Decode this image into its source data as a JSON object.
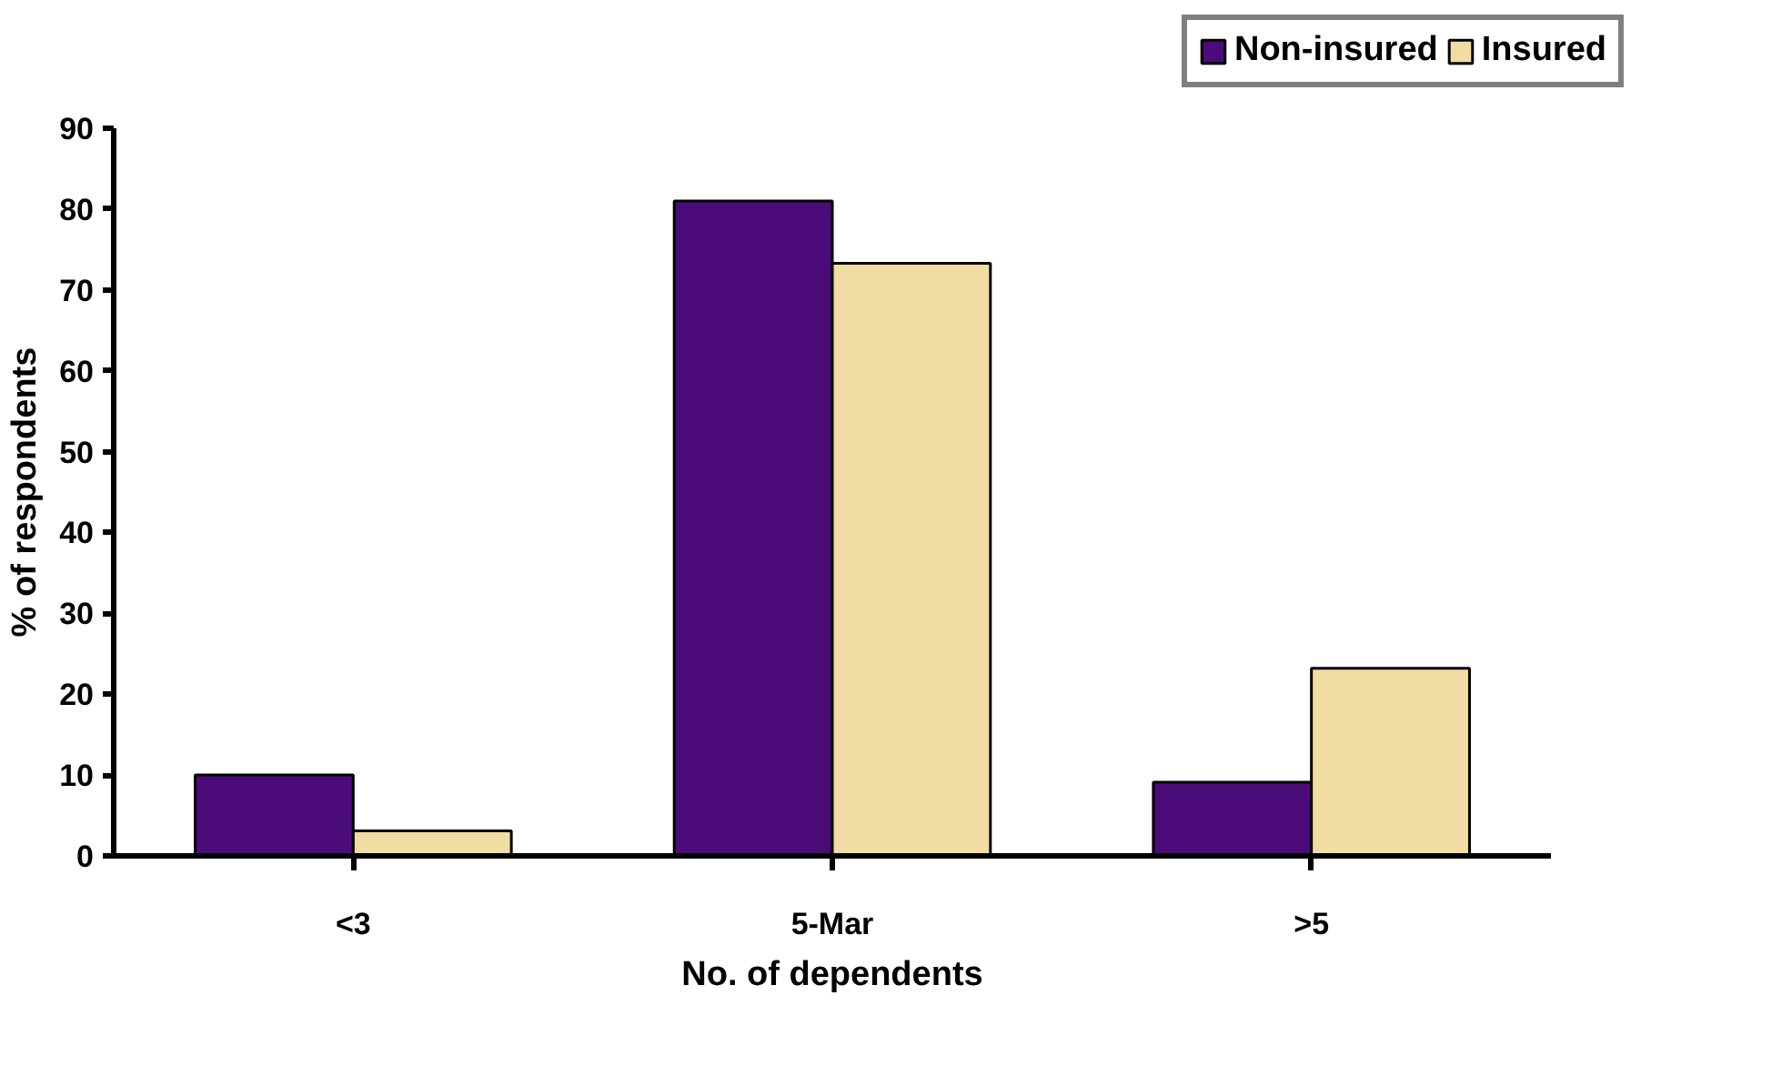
{
  "chart_data": {
    "type": "bar",
    "xlabel": "No. of dependents",
    "ylabel": "% of respondents",
    "categories": [
      "<3",
      "5-Mar",
      ">5"
    ],
    "series": [
      {
        "name": "Non-insured",
        "color": "#4b0c7a",
        "values": [
          10,
          81,
          9.1
        ]
      },
      {
        "name": "Insured",
        "color": "#f1dca3",
        "values": [
          3.1,
          73.3,
          23.2
        ]
      }
    ],
    "ylim": [
      0,
      90
    ],
    "yticks": [
      0,
      10,
      20,
      30,
      40,
      50,
      60,
      70,
      80,
      90
    ],
    "grid": false,
    "legend": "top right"
  }
}
